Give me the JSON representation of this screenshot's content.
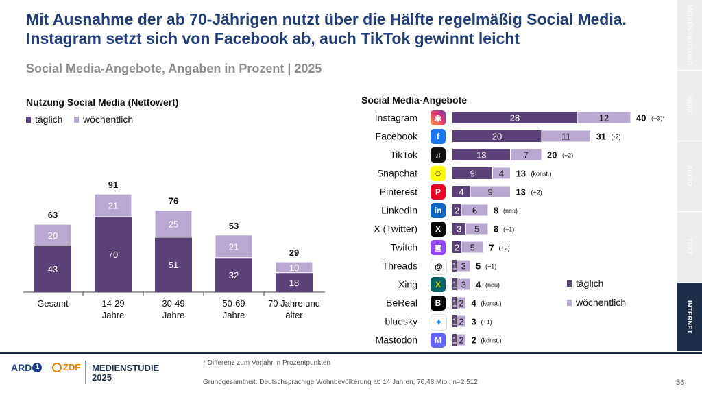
{
  "header": {
    "title": "Mit Ausnahme der ab 70-Jährigen nutzt über die Hälfte regelmäßig Social Media. Instagram setzt sich von Facebook ab, auch TikTok gewinnt leicht",
    "subtitle": "Social Media-Angebote, Angaben in Prozent | 2025"
  },
  "left_panel": {
    "title": "Nutzung Social Media (Nettowert)"
  },
  "right_panel": {
    "title": "Social Media-Angebote"
  },
  "legend": {
    "daily": "täglich",
    "weekly": "wöchentlich"
  },
  "colors": {
    "daily": "#5b4379",
    "weekly": "#b9a8d1",
    "title": "#1f3e7a",
    "subtitle": "#8c8c8c"
  },
  "side_tabs": [
    {
      "label": "MEDIEN-NUTZUNG",
      "active": false
    },
    {
      "label": "VIDEO",
      "active": false
    },
    {
      "label": "AUDIO",
      "active": false
    },
    {
      "label": "TEXT",
      "active": false
    },
    {
      "label": "INTERNET",
      "active": true
    }
  ],
  "footer": {
    "note": "* Differenz zum Vorjahr in Prozentpunkten",
    "base": "Grundgesamtheit: Deutschsprachige Wohnbevölkerung ab 14 Jahren, 70,48 Mio., n=2.512",
    "page": "56",
    "logo_ard": "ARD",
    "logo_zdf": "ZDF",
    "brand_line1": "MEDIENSTUDIE",
    "brand_line2": "2025"
  },
  "chart_data": [
    {
      "type": "bar",
      "stacked": true,
      "title": "Nutzung Social Media (Nettowert)",
      "categories": [
        "Gesamt",
        "14-29 Jahre",
        "30-49 Jahre",
        "50-69 Jahre",
        "70 Jahre und älter"
      ],
      "series": [
        {
          "name": "täglich",
          "values": [
            43,
            70,
            51,
            32,
            18
          ]
        },
        {
          "name": "wöchentlich",
          "values": [
            20,
            21,
            25,
            21,
            10
          ]
        }
      ],
      "totals": [
        63,
        91,
        76,
        53,
        29
      ],
      "legend": "top-left",
      "grid": false
    },
    {
      "type": "bar",
      "orientation": "horizontal",
      "stacked": true,
      "title": "Social Media-Angebote",
      "categories": [
        "Instagram",
        "Facebook",
        "TikTok",
        "Snapchat",
        "Pinterest",
        "LinkedIn",
        "X (Twitter)",
        "Twitch",
        "Threads",
        "Xing",
        "BeReal",
        "bluesky",
        "Mastodon"
      ],
      "icons": [
        "instagram-icon",
        "facebook-icon",
        "tiktok-icon",
        "snapchat-icon",
        "pinterest-icon",
        "linkedin-icon",
        "x-icon",
        "twitch-icon",
        "threads-icon",
        "xing-icon",
        "bereal-icon",
        "bluesky-icon",
        "mastodon-icon"
      ],
      "series": [
        {
          "name": "täglich",
          "values": [
            28,
            20,
            13,
            9,
            4,
            2,
            3,
            2,
            1,
            1,
            1,
            1,
            1
          ]
        },
        {
          "name": "wöchentlich",
          "values": [
            12,
            11,
            7,
            4,
            9,
            6,
            5,
            5,
            3,
            3,
            2,
            2,
            2
          ]
        }
      ],
      "totals": [
        40,
        31,
        20,
        13,
        13,
        8,
        8,
        7,
        5,
        4,
        4,
        3,
        2
      ],
      "change": [
        "(+3)*",
        "(-2)",
        "(+2)",
        "(konst.)",
        "(+2)",
        "(neu)",
        "(+1)",
        "(+2)",
        "(+1)",
        "(neu)",
        "(konst.)",
        "(+1)",
        "(konst.)"
      ],
      "legend": "bottom-right",
      "grid": false
    }
  ]
}
